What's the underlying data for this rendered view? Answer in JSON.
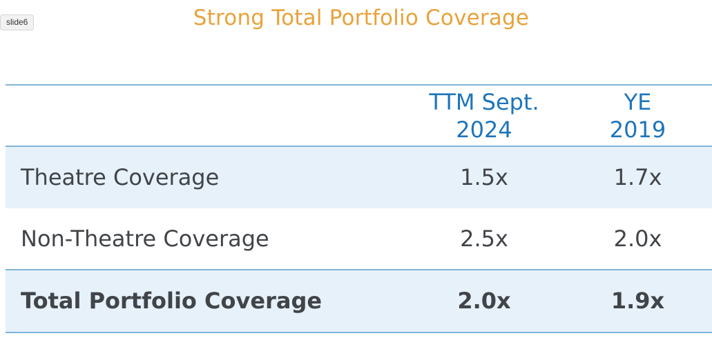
{
  "slide_tag": "slide6",
  "title": "Strong Total Portfolio Coverage",
  "columns": [
    {
      "line1": "TTM Sept.",
      "line2": "2024"
    },
    {
      "line1": "YE",
      "line2": "2019"
    }
  ],
  "rows": [
    {
      "label": "Theatre Coverage",
      "v1": "1.5x",
      "v2": "1.7x"
    },
    {
      "label": "Non-Theatre Coverage",
      "v1": "2.5x",
      "v2": "2.0x"
    },
    {
      "label": "Total Portfolio Coverage",
      "v1": "2.0x",
      "v2": "1.9x"
    }
  ],
  "colors": {
    "title": "#E8A23A",
    "header_text": "#1D75BB",
    "rule": "#7FB3D8",
    "row_shade": "#E6F1FA",
    "body_text": "#414448"
  }
}
